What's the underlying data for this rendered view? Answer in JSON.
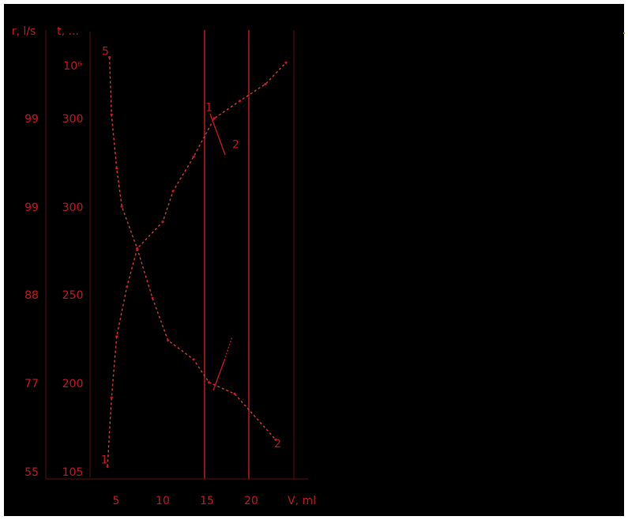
{
  "colors": {
    "background": "#000000",
    "frame": "#ffffff",
    "ink": "#c4161c",
    "light_ink": "#d23a3a",
    "dim_ink": "#5a1010",
    "marker": "#9b9b00"
  },
  "chart_data": {
    "type": "line",
    "title": "",
    "xlabel": "V, ml",
    "ylabel": "",
    "xlim": [
      0,
      40
    ],
    "ylim_right": [
      0,
      500
    ],
    "xticks": [
      {
        "value": 5,
        "label": "5"
      },
      {
        "value": 10,
        "label": "10"
      },
      {
        "value": 15,
        "label": "15"
      },
      {
        "value": 20,
        "label": "20"
      }
    ],
    "y_scale_1": {
      "header": "r, l/s",
      "labels": [
        {
          "value": 100,
          "label": "55"
        },
        {
          "value": 200,
          "label": "77"
        },
        {
          "value": 300,
          "label": "88"
        },
        {
          "value": 400,
          "label": "99"
        },
        {
          "value": 500,
          "label": "99"
        }
      ]
    },
    "y_scale_2": {
      "header": "t, ...",
      "labels": [
        {
          "value": 100,
          "label": "105"
        },
        {
          "value": 200,
          "label": "200"
        },
        {
          "value": 300,
          "label": "250"
        },
        {
          "value": 400,
          "label": "300"
        },
        {
          "value": 500,
          "label": "300"
        },
        {
          "value": 550,
          "label": "10⁶"
        }
      ]
    },
    "vlines": [
      {
        "value": -1,
        "color": "dim"
      },
      {
        "value": 15,
        "color": "red"
      },
      {
        "value": 20,
        "color": "red"
      },
      {
        "value": 24,
        "color": "dim"
      }
    ],
    "series": [
      {
        "name": "",
        "values": [
          {
            "x": 4.6,
            "y": 10
          },
          {
            "x": 5.0,
            "y": 100
          },
          {
            "x": 5.5,
            "y": 180
          },
          {
            "x": 6.5,
            "y": 245
          },
          {
            "x": 7.5,
            "y": 295
          },
          {
            "x": 10.0,
            "y": 330
          },
          {
            "x": 11.0,
            "y": 370
          },
          {
            "x": 13.0,
            "y": 415
          },
          {
            "x": 15.0,
            "y": 465
          },
          {
            "x": 17.5,
            "y": 488
          },
          {
            "x": 20.0,
            "y": 510
          },
          {
            "x": 22.0,
            "y": 538
          }
        ]
      },
      {
        "name": "",
        "values": [
          {
            "x": 4.8,
            "y": 545
          },
          {
            "x": 5.0,
            "y": 470
          },
          {
            "x": 5.5,
            "y": 400
          },
          {
            "x": 6.0,
            "y": 350
          },
          {
            "x": 7.5,
            "y": 295
          },
          {
            "x": 9.0,
            "y": 230
          },
          {
            "x": 10.5,
            "y": 175
          },
          {
            "x": 13.0,
            "y": 150
          },
          {
            "x": 14.5,
            "y": 120
          },
          {
            "x": 17.0,
            "y": 105
          },
          {
            "x": 21.0,
            "y": 45
          }
        ]
      }
    ],
    "annotations": [
      {
        "text": "2",
        "x": 17.1,
        "y": 426
      },
      {
        "text": "1",
        "x": 14.5,
        "y": 475
      },
      {
        "text": "5",
        "x": 4.4,
        "y": 548
      },
      {
        "text": "1",
        "x": 4.3,
        "y": 14
      },
      {
        "text": "2",
        "x": 21.2,
        "y": 35
      }
    ],
    "grid": false,
    "legend": "none"
  }
}
